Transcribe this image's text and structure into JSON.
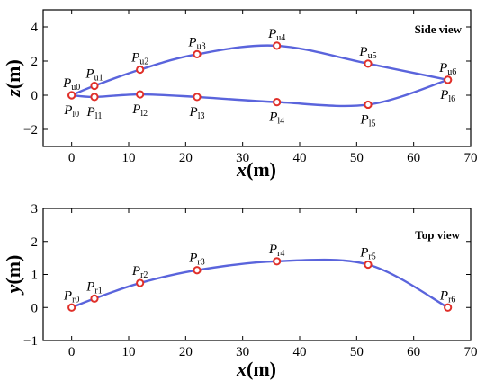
{
  "chart_data": [
    {
      "type": "line",
      "panel_label": "Side view",
      "xlabel_var": "x",
      "xlabel_unit": "(m)",
      "ylabel_var": "z",
      "ylabel_unit": "(m)",
      "xlim": [
        -5,
        70
      ],
      "ylim": [
        -3,
        5
      ],
      "xticks": [
        0,
        10,
        20,
        30,
        40,
        50,
        60,
        70
      ],
      "yticks": [
        -2,
        0,
        2,
        4
      ],
      "grid": false,
      "series": [
        {
          "x": [
            0,
            4,
            12,
            22,
            36,
            52,
            66
          ],
          "y": [
            0,
            0.55,
            1.5,
            2.4,
            2.9,
            1.85,
            0.9
          ],
          "point_labels": [
            {
              "base": "P",
              "sub": "u0"
            },
            {
              "base": "P",
              "sub": "u1"
            },
            {
              "base": "P",
              "sub": "u2"
            },
            {
              "base": "P",
              "sub": "u3"
            },
            {
              "base": "P",
              "sub": "u4"
            },
            {
              "base": "P",
              "sub": "u5"
            },
            {
              "base": "P",
              "sub": "u6"
            }
          ],
          "label_pos": "above"
        },
        {
          "x": [
            0,
            4,
            12,
            22,
            36,
            52,
            66
          ],
          "y": [
            0,
            -0.1,
            0.05,
            -0.1,
            -0.4,
            -0.55,
            0.9
          ],
          "point_labels": [
            {
              "base": "P",
              "sub": "l0"
            },
            {
              "base": "P",
              "sub": "l1"
            },
            {
              "base": "P",
              "sub": "l2"
            },
            {
              "base": "P",
              "sub": "l3"
            },
            {
              "base": "P",
              "sub": "l4"
            },
            {
              "base": "P",
              "sub": "l5"
            },
            {
              "base": "P",
              "sub": "l6"
            }
          ],
          "label_pos": "below"
        }
      ]
    },
    {
      "type": "line",
      "panel_label": "Top view",
      "xlabel_var": "x",
      "xlabel_unit": "(m)",
      "ylabel_var": "y",
      "ylabel_unit": "(m)",
      "xlim": [
        -5,
        70
      ],
      "ylim": [
        -1,
        3
      ],
      "xticks": [
        0,
        10,
        20,
        30,
        40,
        50,
        60,
        70
      ],
      "yticks": [
        -1,
        0,
        1,
        2,
        3
      ],
      "grid": false,
      "series": [
        {
          "x": [
            0,
            4,
            12,
            22,
            36,
            52,
            66
          ],
          "y": [
            0,
            0.27,
            0.74,
            1.13,
            1.4,
            1.3,
            0
          ],
          "point_labels": [
            {
              "base": "P",
              "sub": "r0"
            },
            {
              "base": "P",
              "sub": "r1"
            },
            {
              "base": "P",
              "sub": "r2"
            },
            {
              "base": "P",
              "sub": "r3"
            },
            {
              "base": "P",
              "sub": "r4"
            },
            {
              "base": "P",
              "sub": "r5"
            },
            {
              "base": "P",
              "sub": "r6"
            }
          ],
          "label_pos": "above"
        }
      ]
    }
  ],
  "colors": {
    "curve": "#5a64dc",
    "marker": "#e0302a"
  }
}
